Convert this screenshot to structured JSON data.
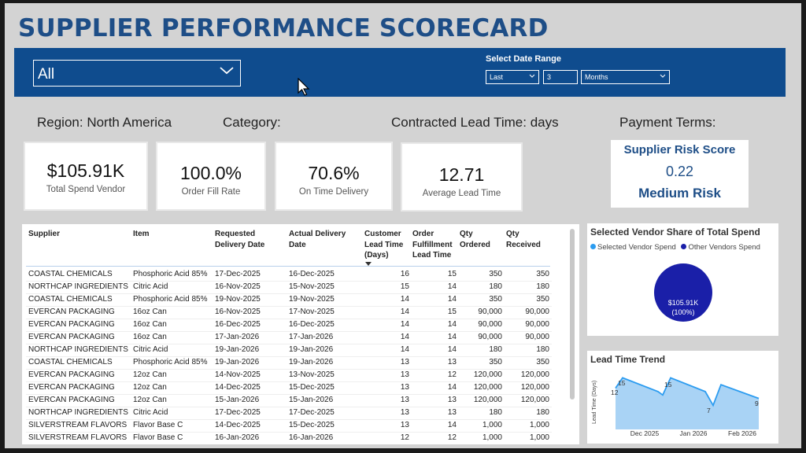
{
  "title": "SUPPLIER PERFORMANCE SCORECARD",
  "filters": {
    "supplier_value": "All",
    "date_range_label": "Select Date Range",
    "range_type": "Last",
    "range_count": "3",
    "range_unit": "Months"
  },
  "labels": {
    "region": "Region: North America",
    "category": "Category:",
    "lead_time": "Contracted Lead Time: days",
    "payment_terms": "Payment Terms:"
  },
  "kpis": {
    "total_spend": {
      "value": "$105.91K",
      "label": "Total Spend Vendor"
    },
    "fill_rate": {
      "value": "100.0%",
      "label": "Order Fill Rate"
    },
    "on_time": {
      "value": "70.6%",
      "label": "On Time Delivery"
    },
    "lead_time": {
      "value": "12.71",
      "label": "Average Lead Time"
    }
  },
  "risk": {
    "title": "Supplier Risk Score",
    "score": "0.22",
    "level": "Medium Risk"
  },
  "table": {
    "headers": {
      "supplier": "Supplier",
      "item": "Item",
      "requested": "Requested Delivery Date",
      "actual": "Actual Delivery Date",
      "customer_lead": "Customer Lead Time (Days)",
      "fulfillment_lead": "Order Fulfillment Lead Time",
      "qty_ordered": "Qty Ordered",
      "qty_received": "Qty Received"
    },
    "rows": [
      [
        "COASTAL CHEMICALS",
        "Phosphoric Acid 85%",
        "17-Dec-2025",
        "16-Dec-2025",
        "16",
        "15",
        "350",
        "350"
      ],
      [
        "NORTHCAP INGREDIENTS",
        "Citric Acid",
        "16-Nov-2025",
        "15-Nov-2025",
        "15",
        "14",
        "180",
        "180"
      ],
      [
        "COASTAL CHEMICALS",
        "Phosphoric Acid 85%",
        "19-Nov-2025",
        "19-Nov-2025",
        "14",
        "14",
        "350",
        "350"
      ],
      [
        "EVERCAN PACKAGING",
        "16oz Can",
        "16-Nov-2025",
        "17-Nov-2025",
        "14",
        "15",
        "90,000",
        "90,000"
      ],
      [
        "EVERCAN PACKAGING",
        "16oz Can",
        "16-Dec-2025",
        "16-Dec-2025",
        "14",
        "14",
        "90,000",
        "90,000"
      ],
      [
        "EVERCAN PACKAGING",
        "16oz Can",
        "17-Jan-2026",
        "17-Jan-2026",
        "14",
        "14",
        "90,000",
        "90,000"
      ],
      [
        "NORTHCAP INGREDIENTS",
        "Citric Acid",
        "19-Jan-2026",
        "19-Jan-2026",
        "14",
        "14",
        "180",
        "180"
      ],
      [
        "COASTAL CHEMICALS",
        "Phosphoric Acid 85%",
        "19-Jan-2026",
        "19-Jan-2026",
        "13",
        "13",
        "350",
        "350"
      ],
      [
        "EVERCAN PACKAGING",
        "12oz Can",
        "14-Nov-2025",
        "13-Nov-2025",
        "13",
        "12",
        "120,000",
        "120,000"
      ],
      [
        "EVERCAN PACKAGING",
        "12oz Can",
        "14-Dec-2025",
        "15-Dec-2025",
        "13",
        "14",
        "120,000",
        "120,000"
      ],
      [
        "EVERCAN PACKAGING",
        "12oz Can",
        "15-Jan-2026",
        "15-Jan-2026",
        "13",
        "13",
        "120,000",
        "120,000"
      ],
      [
        "NORTHCAP INGREDIENTS",
        "Citric Acid",
        "17-Dec-2025",
        "17-Dec-2025",
        "13",
        "13",
        "180",
        "180"
      ],
      [
        "SILVERSTREAM FLAVORS",
        "Flavor Base C",
        "14-Dec-2025",
        "15-Dec-2025",
        "13",
        "14",
        "1,000",
        "1,000"
      ],
      [
        "SILVERSTREAM FLAVORS",
        "Flavor Base C",
        "16-Jan-2026",
        "16-Jan-2026",
        "12",
        "12",
        "1,000",
        "1,000"
      ]
    ]
  },
  "pie": {
    "title": "Selected Vendor Share of Total Spend",
    "legend_selected": "Selected Vendor Spend",
    "legend_other": "Other Vendors Spend",
    "value_label": "$105.91K",
    "pct_label": "(100%)",
    "color_selected": "#2c9cf0",
    "color_other": "#1a1fa8"
  },
  "trend": {
    "title": "Lead Time Trend",
    "ylabel": "Lead Time (Days)",
    "x_ticks": [
      "Dec 2025",
      "Jan 2026",
      "Feb 2026"
    ],
    "labels": [
      "12",
      "15",
      "15",
      "7",
      "9"
    ],
    "color": "#2c9cf0"
  },
  "chart_data": [
    {
      "type": "pie",
      "title": "Selected Vendor Share of Total Spend",
      "categories": [
        "Selected Vendor Spend",
        "Other Vendors Spend"
      ],
      "values": [
        0,
        100
      ],
      "legend": "top-left"
    },
    {
      "type": "area",
      "title": "Lead Time Trend",
      "ylabel": "Lead Time (Days)",
      "x_ticks": [
        "Dec 2025",
        "Jan 2026",
        "Feb 2026"
      ],
      "series": [
        {
          "values": [
            12,
            15,
            11,
            10,
            15,
            11,
            7,
            13,
            9
          ]
        }
      ],
      "grid": false
    }
  ]
}
